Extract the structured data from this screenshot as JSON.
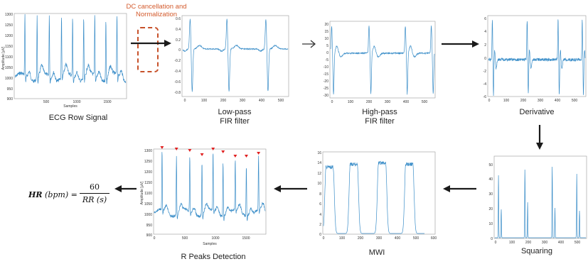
{
  "annotation": {
    "line1": "DC cancellation and",
    "line2": "Normalization"
  },
  "panels": [
    {
      "id": "ecg-raw",
      "caption1": "ECG Row Signal",
      "caption2": "",
      "ylabel": "Amplitude [µV]",
      "xlabel": "Samples",
      "yticks": [
        "1300",
        "1250",
        "1200",
        "1150",
        "1100",
        "1050",
        "1000",
        "950",
        "900"
      ],
      "xticks": [
        "500",
        "1000",
        "1500"
      ]
    },
    {
      "id": "lowpass",
      "caption1": "Low-pass",
      "caption2": "FIR filter",
      "ylabel": "",
      "xlabel": "",
      "yticks": [
        "0.6",
        "0.4",
        "0.2",
        "0",
        "-0.2",
        "-0.4",
        "-0.6",
        "-0.8"
      ],
      "xticks": [
        "0",
        "100",
        "200",
        "300",
        "400",
        "500"
      ]
    },
    {
      "id": "highpass",
      "caption1": "High-pass",
      "caption2": "FIR filter",
      "ylabel": "",
      "xlabel": "",
      "yticks": [
        "20",
        "15",
        "10",
        "5",
        "0",
        "-5",
        "-10",
        "-15",
        "-20",
        "-25",
        "-30"
      ],
      "xticks": [
        "0",
        "100",
        "200",
        "300",
        "400",
        "500"
      ]
    },
    {
      "id": "derivative",
      "caption1": "Derivative",
      "caption2": "",
      "ylabel": "",
      "xlabel": "",
      "yticks": [
        "6",
        "4",
        "2",
        "0",
        "-2",
        "-4",
        "-6"
      ],
      "xticks": [
        "0",
        "100",
        "200",
        "300",
        "400",
        "500"
      ]
    },
    {
      "id": "squaring",
      "caption1": "Squaring",
      "caption2": "",
      "ylabel": "",
      "xlabel": "",
      "yticks": [
        "50",
        "40",
        "30",
        "20",
        "10",
        "0"
      ],
      "xticks": [
        "0",
        "100",
        "200",
        "300",
        "400",
        "500"
      ]
    },
    {
      "id": "mwi",
      "caption1": "MWI",
      "caption2": "",
      "ylabel": "",
      "xlabel": "",
      "yticks": [
        "16",
        "14",
        "12",
        "10",
        "8",
        "6",
        "4",
        "2",
        "0"
      ],
      "xticks": [
        "0",
        "100",
        "200",
        "300",
        "400",
        "500",
        "600"
      ]
    },
    {
      "id": "rpeaks",
      "caption1": "R Peaks Detection",
      "caption2": "",
      "ylabel": "Amplitude [µV]",
      "xlabel": "Samples",
      "yticks": [
        "1300",
        "1250",
        "1200",
        "1150",
        "1100",
        "1050",
        "1000",
        "950",
        "900"
      ],
      "xticks": [
        "0",
        "500",
        "1000",
        "1500"
      ]
    }
  ],
  "formula": {
    "lhs_bold": "HR",
    "lhs_unit": "(bpm)",
    "equals": "=",
    "numerator": "60",
    "denominator": "RR (s)"
  },
  "colors": {
    "signal": "#3d8fc9",
    "peak_marker": "#e02020",
    "annotation": "#d35a2c",
    "arrow": "#1a1a1a"
  }
}
